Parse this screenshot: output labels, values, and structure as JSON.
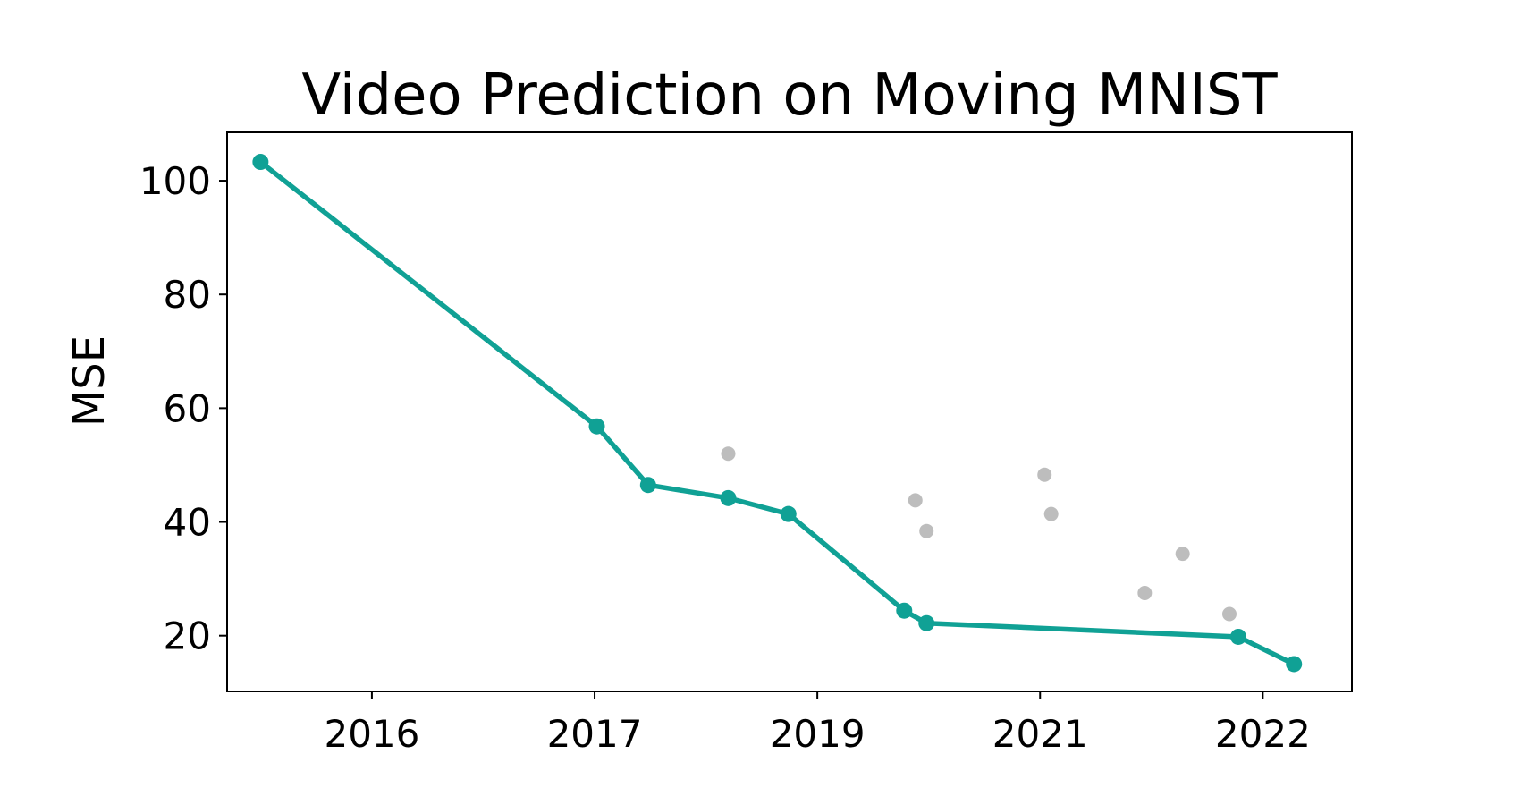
{
  "chart_data": {
    "type": "line",
    "title": "Video Prediction on Moving MNIST",
    "xlabel": "",
    "ylabel": "MSE",
    "x_ticks": [
      {
        "x": 2015.75,
        "label": "2016"
      },
      {
        "x": 2016.75,
        "label": "2017"
      },
      {
        "x": 2017.75,
        "label": "2019"
      },
      {
        "x": 2018.75,
        "label": "2021"
      },
      {
        "x": 2019.75,
        "label": "2022"
      }
    ],
    "y_ticks": [
      20,
      40,
      60,
      80,
      100
    ],
    "xlim": [
      2015.1,
      2020.15
    ],
    "ylim": [
      10.2,
      108.5
    ],
    "grid": false,
    "series": [
      {
        "name": "",
        "role": "frontier",
        "color": "#10a195",
        "points": [
          {
            "x": 2015.25,
            "y": 103.3
          },
          {
            "x": 2016.76,
            "y": 56.8
          },
          {
            "x": 2016.99,
            "y": 46.5
          },
          {
            "x": 2017.35,
            "y": 44.2
          },
          {
            "x": 2017.62,
            "y": 41.4
          },
          {
            "x": 2018.14,
            "y": 24.4
          },
          {
            "x": 2018.24,
            "y": 22.2
          },
          {
            "x": 2019.64,
            "y": 19.8
          },
          {
            "x": 2019.89,
            "y": 15.0
          }
        ]
      },
      {
        "name": "",
        "role": "other",
        "color": "#bdbdbd",
        "points": [
          {
            "x": 2017.35,
            "y": 52.0
          },
          {
            "x": 2018.19,
            "y": 43.8
          },
          {
            "x": 2018.24,
            "y": 38.4
          },
          {
            "x": 2018.77,
            "y": 48.3
          },
          {
            "x": 2018.8,
            "y": 41.4
          },
          {
            "x": 2019.22,
            "y": 27.5
          },
          {
            "x": 2019.39,
            "y": 34.4
          },
          {
            "x": 2019.6,
            "y": 23.8
          }
        ]
      }
    ]
  }
}
